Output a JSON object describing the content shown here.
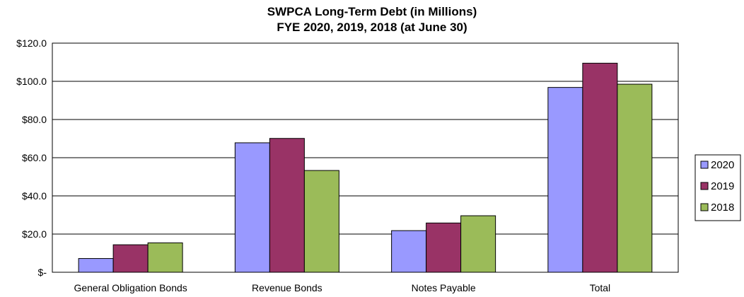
{
  "chart_data": {
    "type": "bar",
    "title": "SWPCA Long-Term Debt (in Millions)",
    "subtitle": "FYE 2020, 2019, 2018 (at June 30)",
    "categories": [
      "General Obligation Bonds",
      "Revenue Bonds",
      "Notes Payable",
      "Total"
    ],
    "series": [
      {
        "name": "2020",
        "color": "#9999ff",
        "values": [
          7.2,
          67.8,
          21.8,
          96.8
        ]
      },
      {
        "name": "2019",
        "color": "#993366",
        "values": [
          14.4,
          70.1,
          25.8,
          109.5
        ]
      },
      {
        "name": "2018",
        "color": "#9bbb59",
        "values": [
          15.4,
          53.3,
          29.6,
          98.5
        ]
      }
    ],
    "ylim": [
      0,
      120
    ],
    "yticks": [
      0,
      20,
      40,
      60,
      80,
      100,
      120
    ],
    "ytick_labels": [
      "$-",
      "$20.0",
      "$40.0",
      "$60.0",
      "$80.0",
      "$100.0",
      "$120.0"
    ],
    "xlabel": "",
    "ylabel": "",
    "grid": true,
    "legend_position": "right"
  }
}
